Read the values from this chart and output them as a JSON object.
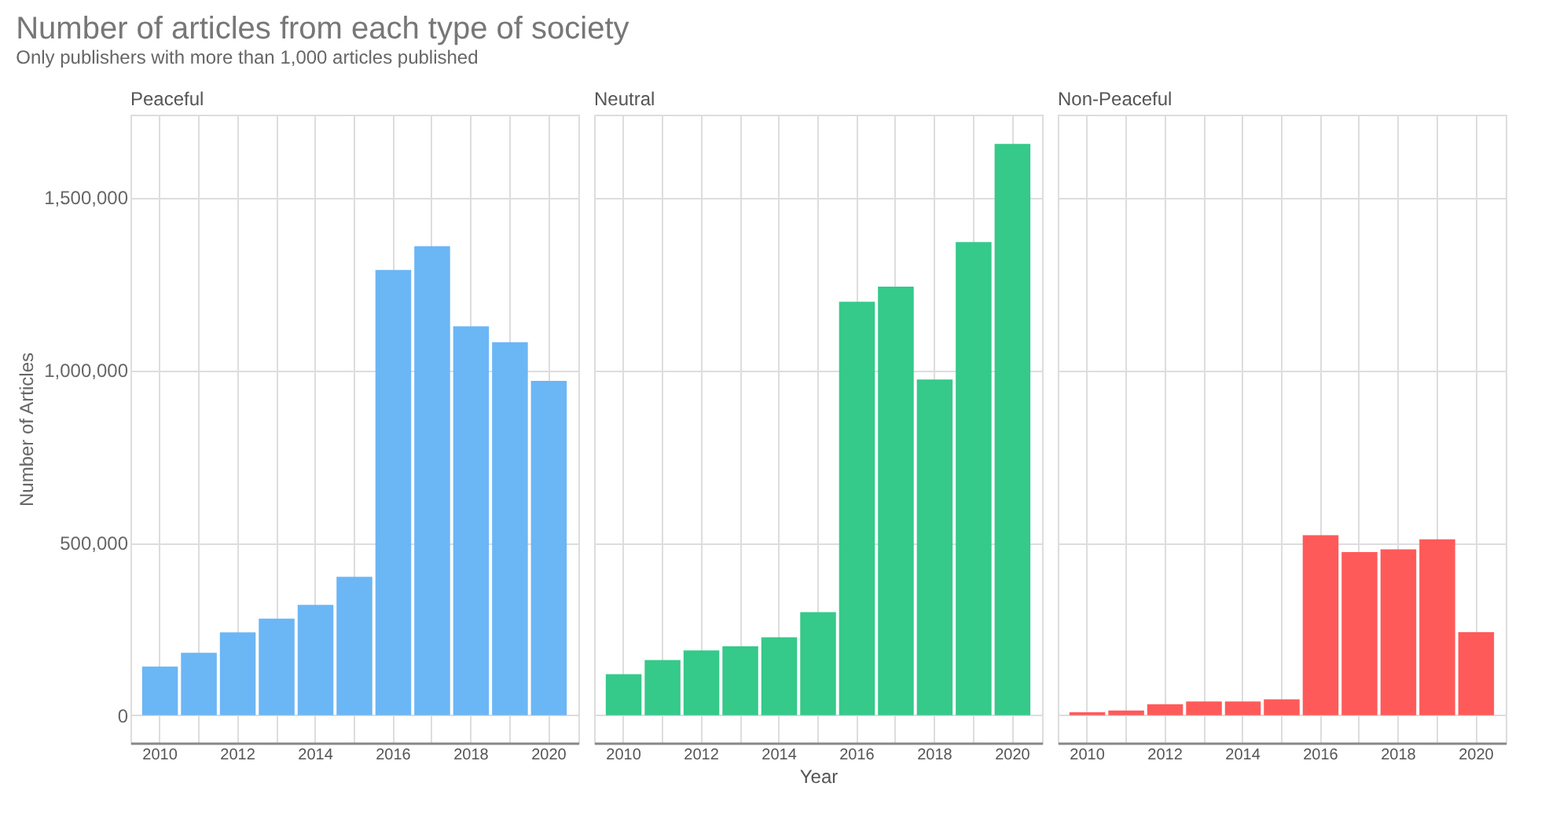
{
  "chart_data": [
    {
      "type": "bar",
      "title": "Number of articles from each type of society",
      "subtitle": "Only publishers with more than 1,000 articles published",
      "ylabel": "Number of Articles",
      "categories": [
        "2010",
        null,
        "2012",
        null,
        "2014",
        null,
        "2016",
        null,
        "2018",
        null,
        "2020"
      ],
      "ylim": [
        -80000,
        1740000
      ],
      "yticks": [
        {
          "value": 0,
          "label": "0"
        },
        {
          "value": 500000,
          "label": "500,000"
        },
        {
          "value": 1000000,
          "label": "1,000,000"
        },
        {
          "value": 1500000,
          "label": "1,500,000"
        }
      ],
      "grid": true,
      "series": [
        {
          "name": "Peaceful",
          "color": "#6bb6f5",
          "values": [
            141000,
            181000,
            240000,
            280000,
            320000,
            401000,
            1290000,
            1359000,
            1127000,
            1081000,
            969000
          ]
        }
      ]
    },
    {
      "type": "bar",
      "xlabel": "Year",
      "categories": [
        "2010",
        null,
        "2012",
        null,
        "2014",
        null,
        "2016",
        null,
        "2018",
        null,
        "2020"
      ],
      "ylim": [
        -80000,
        1740000
      ],
      "yticks": [
        0,
        500000,
        1000000,
        1500000
      ],
      "grid": true,
      "tick_labels": "x",
      "series": [
        {
          "name": "Neutral",
          "color": "#35c98a",
          "values": [
            119000,
            160000,
            188000,
            200000,
            226000,
            299000,
            1198000,
            1242000,
            973000,
            1371000,
            1655000
          ]
        }
      ]
    },
    {
      "type": "bar",
      "categories": [
        "2010",
        null,
        "2012",
        null,
        "2014",
        null,
        "2016",
        null,
        "2018",
        null,
        "2020"
      ],
      "ylim": [
        -80000,
        1740000
      ],
      "yticks": [
        0,
        500000,
        1000000,
        1500000
      ],
      "grid": true,
      "tick_labels": "x",
      "series": [
        {
          "name": "Non-Peaceful",
          "color": "#ff5a5a",
          "values": [
            9000,
            14000,
            32000,
            40000,
            40000,
            46000,
            522000,
            473000,
            481000,
            510000,
            241000
          ]
        }
      ]
    }
  ]
}
